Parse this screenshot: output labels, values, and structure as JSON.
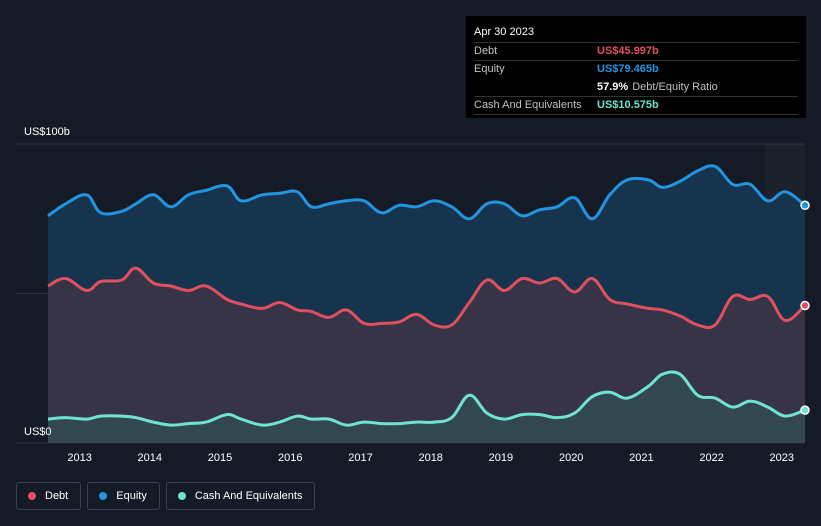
{
  "colors": {
    "debt": "#e0505f",
    "equity": "#2394df",
    "cash": "#6fe3d2",
    "equity_fill": "#173650",
    "debt_fill": "#3c3446",
    "cash_fill": "#324951"
  },
  "tooltip": {
    "date": "Apr 30 2023",
    "debt_label": "Debt",
    "debt_value": "US$45.997b",
    "equity_label": "Equity",
    "equity_value": "US$79.465b",
    "ratio_value": "57.9%",
    "ratio_label": "Debt/Equity Ratio",
    "cash_label": "Cash And Equivalents",
    "cash_value": "US$10.575b"
  },
  "legend": {
    "debt": "Debt",
    "equity": "Equity",
    "cash": "Cash And Equivalents"
  },
  "chart_data": {
    "type": "area",
    "y_top_label": "US$100b",
    "y_bottom_label": "US$0",
    "ylim": [
      0,
      100
    ],
    "xlim": [
      2012.55,
      2023.33
    ],
    "x_ticks": [
      "2013",
      "2014",
      "2015",
      "2016",
      "2017",
      "2018",
      "2019",
      "2020",
      "2021",
      "2022",
      "2023"
    ],
    "grid": true,
    "legend_position": "bottom-left",
    "series": [
      {
        "key": "equity",
        "name": "Equity",
        "x": [
          2012.55,
          2012.8,
          2013.1,
          2013.3,
          2013.6,
          2013.8,
          2014.05,
          2014.3,
          2014.55,
          2014.8,
          2015.1,
          2015.3,
          2015.6,
          2015.85,
          2016.1,
          2016.3,
          2016.55,
          2016.8,
          2017.05,
          2017.3,
          2017.55,
          2017.8,
          2018.05,
          2018.3,
          2018.55,
          2018.8,
          2019.05,
          2019.3,
          2019.55,
          2019.8,
          2020.05,
          2020.3,
          2020.55,
          2020.8,
          2021.1,
          2021.3,
          2021.55,
          2021.8,
          2022.05,
          2022.3,
          2022.55,
          2022.8,
          2023.05,
          2023.33
        ],
        "values": [
          76,
          80,
          83,
          77,
          77.5,
          80,
          83,
          79,
          83,
          84.5,
          86,
          81,
          83,
          83.5,
          84,
          79,
          80,
          81,
          81,
          77,
          79.5,
          79,
          81,
          79,
          75,
          80,
          80,
          76,
          78,
          79,
          82,
          75,
          83,
          88,
          88,
          85.5,
          87.5,
          91,
          92.5,
          86.5,
          86.5,
          81,
          84,
          79.5
        ]
      },
      {
        "key": "debt",
        "name": "Debt",
        "x": [
          2012.55,
          2012.8,
          2013.1,
          2013.3,
          2013.6,
          2013.8,
          2014.05,
          2014.3,
          2014.55,
          2014.8,
          2015.1,
          2015.3,
          2015.6,
          2015.85,
          2016.1,
          2016.3,
          2016.55,
          2016.8,
          2017.05,
          2017.3,
          2017.55,
          2017.8,
          2018.05,
          2018.3,
          2018.55,
          2018.8,
          2019.05,
          2019.3,
          2019.55,
          2019.8,
          2020.05,
          2020.3,
          2020.55,
          2020.8,
          2021.1,
          2021.3,
          2021.55,
          2021.8,
          2022.05,
          2022.3,
          2022.55,
          2022.8,
          2023.05,
          2023.33
        ],
        "values": [
          52.5,
          55,
          51,
          54,
          54.5,
          58.5,
          53.5,
          52.5,
          51,
          52.5,
          48,
          46.5,
          45,
          47,
          44.5,
          44,
          42,
          44.5,
          40,
          40,
          40.5,
          43,
          39.5,
          39.5,
          47,
          54.5,
          51,
          55,
          53.5,
          55,
          50.5,
          55,
          48,
          46.5,
          45,
          44.5,
          42.5,
          39.5,
          39.5,
          49,
          48,
          49,
          41,
          46
        ]
      },
      {
        "key": "cash",
        "name": "Cash And Equivalents",
        "x": [
          2012.55,
          2012.8,
          2013.1,
          2013.3,
          2013.6,
          2013.8,
          2014.05,
          2014.3,
          2014.55,
          2014.8,
          2015.1,
          2015.3,
          2015.6,
          2015.85,
          2016.1,
          2016.3,
          2016.55,
          2016.8,
          2017.05,
          2017.3,
          2017.55,
          2017.8,
          2018.05,
          2018.3,
          2018.55,
          2018.8,
          2019.05,
          2019.3,
          2019.55,
          2019.8,
          2020.05,
          2020.3,
          2020.55,
          2020.8,
          2021.1,
          2021.3,
          2021.55,
          2021.8,
          2022.05,
          2022.3,
          2022.55,
          2022.8,
          2023.05,
          2023.33
        ],
        "values": [
          8,
          8.5,
          8,
          9,
          9,
          8.5,
          7,
          6,
          6.5,
          7,
          9.5,
          8,
          6,
          7,
          9,
          8,
          8,
          6,
          7,
          6.5,
          6.5,
          7,
          7,
          8.5,
          16,
          10,
          8,
          9.5,
          9.5,
          8.5,
          10,
          15.5,
          17,
          15,
          19,
          23,
          23,
          16,
          15,
          12,
          14,
          12,
          9,
          11
        ]
      }
    ]
  }
}
